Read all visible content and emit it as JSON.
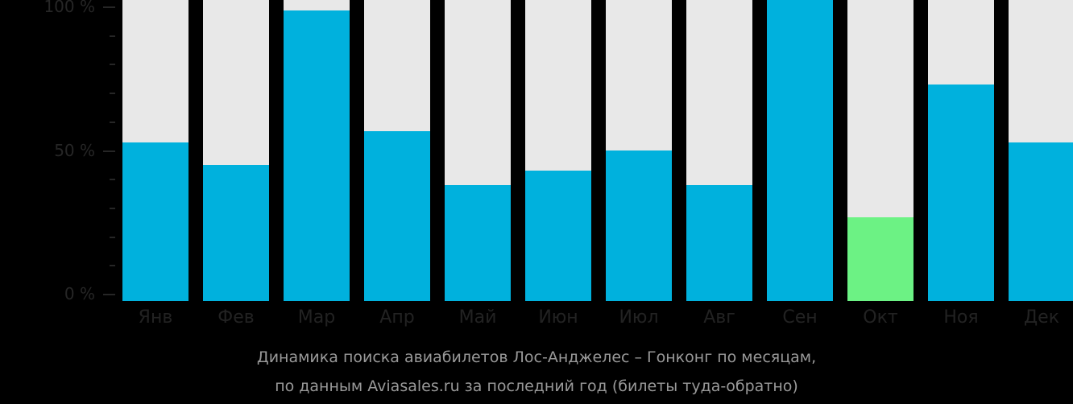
{
  "chart_data": {
    "type": "bar",
    "title": "Динамика поиска авиабилетов Лос-Анджелес – Гонконг по месяцам, по данным Aviasales.ru за последний год (билеты туда-обратно)",
    "xlabel": "",
    "ylabel": "",
    "ylim": [
      0,
      100
    ],
    "yticks": [
      "0 %",
      "50 %",
      "100 %"
    ],
    "categories": [
      "Янв",
      "Фев",
      "Мар",
      "Апр",
      "Май",
      "Июн",
      "Июл",
      "Авг",
      "Сен",
      "Окт",
      "Ноя",
      "Дек"
    ],
    "values": [
      53,
      45,
      99,
      57,
      38,
      43,
      50,
      38,
      100,
      27,
      73,
      53
    ],
    "grid": false,
    "legend": null,
    "highlight_min_index": 9,
    "colors": {
      "bar": "#00b1dd",
      "min_bar": "#6cf284",
      "track": "#e8e8e8",
      "background": "#000000"
    }
  },
  "axis": {
    "y100": "100 %",
    "y50": "50 %",
    "y0": "0 %"
  },
  "caption": {
    "line1": "Динамика поиска авиабилетов Лос-Анджелес – Гонконг по месяцам,",
    "line2": "по данным Aviasales.ru за последний год (билеты туда-обратно)"
  }
}
